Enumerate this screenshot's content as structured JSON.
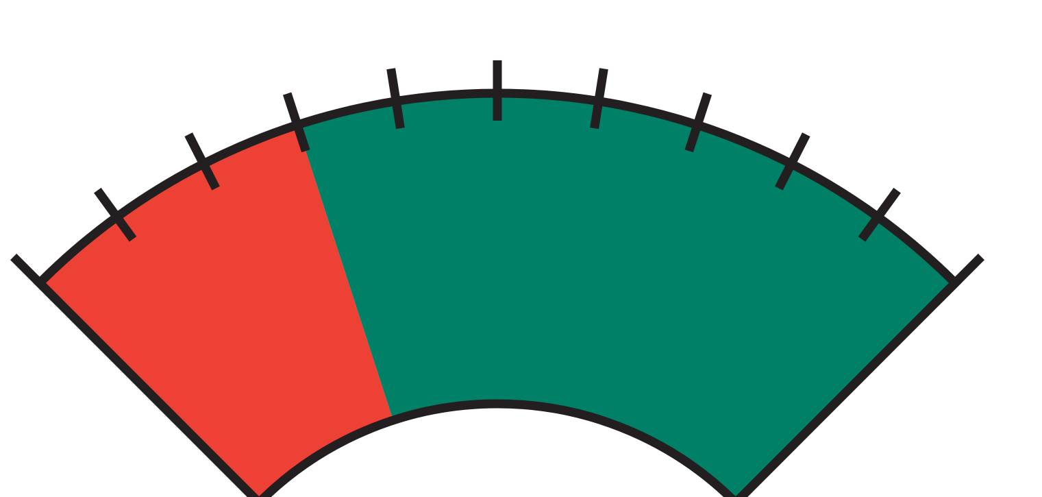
{
  "gauge": {
    "scale_ticks": 10,
    "zones": [
      {
        "name": "red-zone",
        "from_tick": 0,
        "to_tick": 3,
        "color": "#ee4136"
      },
      {
        "name": "green-zone",
        "from_tick": 3,
        "to_tick": 10,
        "color": "#008066"
      }
    ],
    "colors": {
      "outline": "#231f20",
      "background": "#ffffff"
    }
  }
}
